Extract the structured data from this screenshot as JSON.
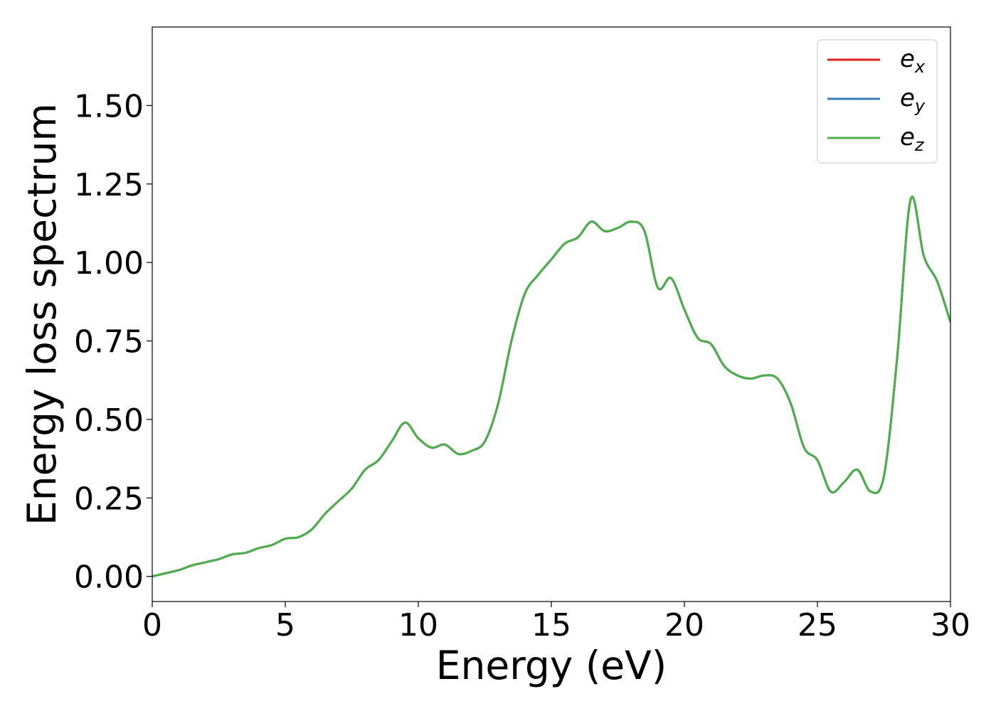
{
  "chart_data": {
    "type": "line",
    "xlabel": "Energy (eV)",
    "ylabel": "Energy loss spectrum",
    "xlim": [
      0,
      30
    ],
    "ylim": [
      -0.08,
      1.75
    ],
    "xticks": [
      0,
      5,
      10,
      15,
      20,
      25,
      30
    ],
    "xtick_labels": [
      "0",
      "5",
      "10",
      "15",
      "20",
      "25",
      "30"
    ],
    "yticks": [
      0.0,
      0.25,
      0.5,
      0.75,
      1.0,
      1.25,
      1.5
    ],
    "ytick_labels": [
      "0.00",
      "0.25",
      "0.50",
      "0.75",
      "1.00",
      "1.25",
      "1.50"
    ],
    "grid": false,
    "legend_position": "top-right",
    "x": [
      0,
      0.5,
      1.0,
      1.5,
      2.0,
      2.5,
      3.0,
      3.5,
      4.0,
      4.5,
      5.0,
      5.5,
      6.0,
      6.5,
      7.0,
      7.5,
      8.0,
      8.5,
      9.0,
      9.5,
      10.0,
      10.5,
      11.0,
      11.5,
      12.0,
      12.5,
      13.0,
      13.5,
      14.0,
      14.5,
      15.0,
      15.5,
      16.0,
      16.5,
      17.0,
      17.5,
      18.0,
      18.5,
      19.0,
      19.5,
      20.0,
      20.5,
      21.0,
      21.5,
      22.0,
      22.5,
      23.0,
      23.5,
      24.0,
      24.5,
      25.0,
      25.5,
      26.0,
      26.5,
      27.0,
      27.5,
      28.0,
      28.5,
      29.0,
      29.5,
      30.0
    ],
    "series": [
      {
        "name": "e_x",
        "label_main": "e",
        "label_sub": "x",
        "color": "#e41a1c",
        "values": [
          0.0,
          0.01,
          0.02,
          0.035,
          0.045,
          0.055,
          0.07,
          0.075,
          0.09,
          0.1,
          0.12,
          0.125,
          0.15,
          0.2,
          0.24,
          0.28,
          0.34,
          0.37,
          0.43,
          0.49,
          0.44,
          0.41,
          0.42,
          0.39,
          0.4,
          0.43,
          0.55,
          0.75,
          0.9,
          0.96,
          1.01,
          1.06,
          1.08,
          1.13,
          1.1,
          1.11,
          1.13,
          1.1,
          0.92,
          0.95,
          0.85,
          0.76,
          0.74,
          0.67,
          0.64,
          0.63,
          0.64,
          0.63,
          0.55,
          0.41,
          0.37,
          0.27,
          0.3,
          0.34,
          0.27,
          0.32,
          0.7,
          1.2,
          1.02,
          0.94,
          0.81
        ]
      },
      {
        "name": "e_y",
        "label_main": "e",
        "label_sub": "y",
        "color": "#377eb8",
        "values": [
          0.0,
          0.01,
          0.02,
          0.035,
          0.045,
          0.055,
          0.07,
          0.075,
          0.09,
          0.1,
          0.12,
          0.125,
          0.15,
          0.2,
          0.24,
          0.28,
          0.34,
          0.37,
          0.43,
          0.49,
          0.44,
          0.41,
          0.42,
          0.39,
          0.4,
          0.43,
          0.55,
          0.75,
          0.9,
          0.96,
          1.01,
          1.06,
          1.08,
          1.13,
          1.1,
          1.11,
          1.13,
          1.1,
          0.92,
          0.95,
          0.85,
          0.76,
          0.74,
          0.67,
          0.64,
          0.63,
          0.64,
          0.63,
          0.55,
          0.41,
          0.37,
          0.27,
          0.3,
          0.34,
          0.27,
          0.32,
          0.7,
          1.2,
          1.02,
          0.94,
          0.81
        ]
      },
      {
        "name": "e_z",
        "label_main": "e",
        "label_sub": "z",
        "color": "#4daf4a",
        "values": [
          0.0,
          0.01,
          0.02,
          0.035,
          0.045,
          0.055,
          0.07,
          0.075,
          0.09,
          0.1,
          0.12,
          0.125,
          0.15,
          0.2,
          0.24,
          0.28,
          0.34,
          0.37,
          0.43,
          0.49,
          0.44,
          0.41,
          0.42,
          0.39,
          0.4,
          0.43,
          0.55,
          0.75,
          0.9,
          0.96,
          1.01,
          1.06,
          1.08,
          1.13,
          1.1,
          1.11,
          1.13,
          1.1,
          0.92,
          0.95,
          0.85,
          0.76,
          0.74,
          0.67,
          0.64,
          0.63,
          0.64,
          0.63,
          0.55,
          0.41,
          0.37,
          0.27,
          0.3,
          0.34,
          0.27,
          0.32,
          0.7,
          1.2,
          1.02,
          0.94,
          0.81
        ]
      }
    ]
  }
}
